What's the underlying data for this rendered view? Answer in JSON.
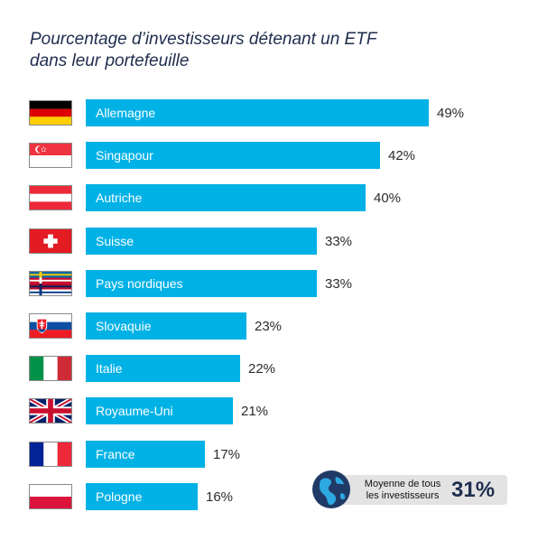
{
  "title_lines": [
    "Pourcentage d’investisseurs détenant un ETF",
    "dans leur portefeuille"
  ],
  "chart_data": {
    "type": "bar",
    "orientation": "horizontal",
    "title": "Pourcentage d’investisseurs détenant un ETF dans leur portefeuille",
    "categories": [
      "Allemagne",
      "Singapour",
      "Autriche",
      "Suisse",
      "Pays nordiques",
      "Slovaquie",
      "Italie",
      "Royaume-Uni",
      "France",
      "Pologne"
    ],
    "values": [
      49,
      42,
      40,
      33,
      33,
      23,
      22,
      21,
      17,
      16
    ],
    "value_labels": [
      "49%",
      "42%",
      "40%",
      "33%",
      "33%",
      "23%",
      "22%",
      "21%",
      "17%",
      "16%"
    ],
    "flags": [
      "germany-flag",
      "singapore-flag",
      "austria-flag",
      "switzerland-flag",
      "nordic-flags",
      "slovakia-flag",
      "italy-flag",
      "uk-flag",
      "france-flag",
      "poland-flag"
    ],
    "bar_color": "#00b1e6",
    "xlim": [
      0,
      49
    ],
    "grid": false
  },
  "average": {
    "label_lines": [
      "Moyenne de tous",
      "les investisseurs"
    ],
    "value": "31%",
    "icon": "globe-icon"
  }
}
